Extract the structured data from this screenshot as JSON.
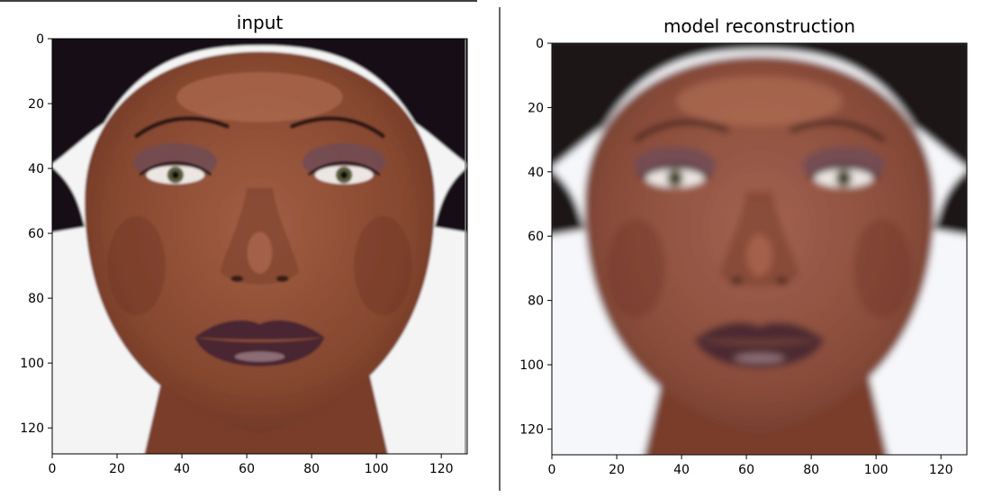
{
  "chart_data": [
    {
      "type": "image",
      "title": "input",
      "xlim": [
        0,
        128
      ],
      "ylim": [
        128,
        0
      ],
      "xticks": [
        0,
        20,
        40,
        60,
        80,
        100,
        120
      ],
      "yticks": [
        0,
        20,
        40,
        60,
        80,
        100,
        120
      ],
      "image_content": "face-photo",
      "colors": {
        "skin": "#8a4a34",
        "hair": "#151012",
        "lips": "#4a2630",
        "background": "#f4f4f4"
      }
    },
    {
      "type": "image",
      "title": "model reconstruction",
      "xlim": [
        0,
        128
      ],
      "ylim": [
        128,
        0
      ],
      "xticks": [
        0,
        20,
        40,
        60,
        80,
        100,
        120
      ],
      "yticks": [
        0,
        20,
        40,
        60,
        80,
        100,
        120
      ],
      "image_content": "face-photo-blurred",
      "colors": {
        "skin": "#8d4f3e",
        "hair": "#1a1214",
        "lips": "#4e2a32",
        "background": "#f6f7fa"
      }
    }
  ]
}
